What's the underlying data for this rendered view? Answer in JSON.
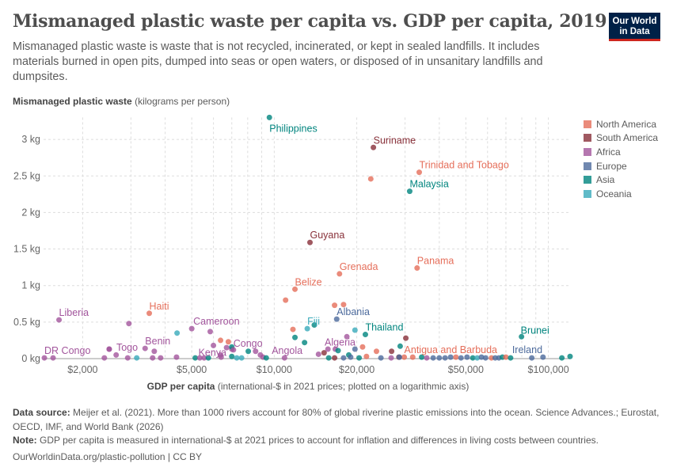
{
  "header": {
    "title": "Mismanaged plastic waste per capita vs. GDP per capita, 2019",
    "subtitle": "Mismanaged plastic waste is waste that is not recycled, incinerated, or kept in sealed landfills. It includes materials burned in open pits, dumped into seas or open waters, or disposed of in unsanitary landfills and dumpsites.",
    "logo_line1": "Our World",
    "logo_line2": "in Data"
  },
  "colors": {
    "North America": "#e56e5a",
    "South America": "#883039",
    "Africa": "#a2559c",
    "Europe": "#4c6a9c",
    "Asia": "#00847e",
    "Oceania": "#38aaba"
  },
  "chart_data": {
    "type": "scatter",
    "title": "Mismanaged plastic waste per capita vs. GDP per capita, 2019",
    "ylabel_bold": "Mismanaged plastic waste",
    "ylabel_unit": " (kilograms per person)",
    "xlabel_bold": "GDP per capita",
    "xlabel_unit": " (international-$ in 2021 prices; plotted on a logarithmic axis)",
    "x_scale": "log",
    "xlim": [
      1440,
      120000
    ],
    "ylim": [
      0,
      3.3
    ],
    "grid": true,
    "legend_placement": "right",
    "x_ticks": [
      {
        "v": 2000,
        "label": "$2,000"
      },
      {
        "v": 5000,
        "label": "$5,000"
      },
      {
        "v": 10000,
        "label": "$10,000"
      },
      {
        "v": 20000,
        "label": "$20,000"
      },
      {
        "v": 50000,
        "label": "$50,000"
      },
      {
        "v": 100000,
        "label": "$100,000"
      }
    ],
    "y_ticks": [
      {
        "v": 0,
        "label": "0 kg"
      },
      {
        "v": 0.5,
        "label": "0.5 kg"
      },
      {
        "v": 1,
        "label": "1 kg"
      },
      {
        "v": 1.5,
        "label": "1.5 kg"
      },
      {
        "v": 2,
        "label": "2 kg"
      },
      {
        "v": 2.5,
        "label": "2.5 kg"
      },
      {
        "v": 3,
        "label": "3 kg"
      }
    ],
    "legend": [
      "North America",
      "South America",
      "Africa",
      "Europe",
      "Asia",
      "Oceania"
    ],
    "points": [
      {
        "gdp": 9600,
        "kg": 3.3,
        "region": "Asia",
        "label": "Philippines"
      },
      {
        "gdp": 23000,
        "kg": 2.89,
        "region": "South America",
        "label": "Suriname"
      },
      {
        "gdp": 33800,
        "kg": 2.55,
        "region": "North America",
        "label": "Trinidad and Tobago"
      },
      {
        "gdp": 22500,
        "kg": 2.46,
        "region": "North America"
      },
      {
        "gdp": 31200,
        "kg": 2.29,
        "region": "Asia",
        "label": "Malaysia"
      },
      {
        "gdp": 13500,
        "kg": 1.59,
        "region": "South America",
        "label": "Guyana"
      },
      {
        "gdp": 17300,
        "kg": 1.16,
        "region": "North America",
        "label": "Grenada"
      },
      {
        "gdp": 33200,
        "kg": 1.24,
        "region": "North America",
        "label": "Panama"
      },
      {
        "gdp": 11900,
        "kg": 0.95,
        "region": "North America",
        "label": "Belize"
      },
      {
        "gdp": 11000,
        "kg": 0.8,
        "region": "North America"
      },
      {
        "gdp": 16600,
        "kg": 0.73,
        "region": "North America"
      },
      {
        "gdp": 17900,
        "kg": 0.74,
        "region": "North America"
      },
      {
        "gdp": 3500,
        "kg": 0.62,
        "region": "North America",
        "label": "Haiti"
      },
      {
        "gdp": 1640,
        "kg": 0.53,
        "region": "Africa",
        "label": "Liberia"
      },
      {
        "gdp": 2950,
        "kg": 0.48,
        "region": "Africa"
      },
      {
        "gdp": 5000,
        "kg": 0.41,
        "region": "Africa",
        "label": "Cameroon"
      },
      {
        "gdp": 13200,
        "kg": 0.41,
        "region": "Oceania",
        "label": "Fiji"
      },
      {
        "gdp": 16900,
        "kg": 0.54,
        "region": "Europe",
        "label": "Albania"
      },
      {
        "gdp": 21500,
        "kg": 0.33,
        "region": "Asia",
        "label": "Thailand"
      },
      {
        "gdp": 79800,
        "kg": 0.3,
        "region": "Asia",
        "label": "Brunei"
      },
      {
        "gdp": 18400,
        "kg": 0.3,
        "region": "Africa",
        "label": "Algeria"
      },
      {
        "gdp": 7000,
        "kg": 0.13,
        "region": "Africa",
        "label": "Congo"
      },
      {
        "gdp": 3380,
        "kg": 0.14,
        "region": "Africa",
        "label": "Benin"
      },
      {
        "gdp": 2500,
        "kg": 0.13,
        "region": "Africa",
        "label": "Togo"
      },
      {
        "gdp": 6370,
        "kg": 0.05,
        "region": "Africa",
        "label": "Kenya"
      },
      {
        "gdp": 1450,
        "kg": 0.01,
        "region": "Africa",
        "label": "DR Congo"
      },
      {
        "gdp": 9100,
        "kg": 0.02,
        "region": "Africa",
        "label": "Angola"
      },
      {
        "gdp": 29800,
        "kg": 0.02,
        "region": "North America",
        "label": "Antigua and Barbuda"
      },
      {
        "gdp": 95600,
        "kg": 0.02,
        "region": "Europe",
        "label": "Ireland"
      },
      {
        "gdp": 4420,
        "kg": 0.35,
        "region": "Oceania"
      },
      {
        "gdp": 5840,
        "kg": 0.37,
        "region": "Africa"
      },
      {
        "gdp": 11700,
        "kg": 0.4,
        "region": "North America"
      },
      {
        "gdp": 11900,
        "kg": 0.29,
        "region": "Asia"
      },
      {
        "gdp": 12900,
        "kg": 0.22,
        "region": "Asia"
      },
      {
        "gdp": 14000,
        "kg": 0.46,
        "region": "Asia"
      },
      {
        "gdp": 6370,
        "kg": 0.25,
        "region": "North America"
      },
      {
        "gdp": 6800,
        "kg": 0.23,
        "region": "North America"
      },
      {
        "gdp": 6000,
        "kg": 0.18,
        "region": "Africa"
      },
      {
        "gdp": 6700,
        "kg": 0.15,
        "region": "Africa"
      },
      {
        "gdp": 7000,
        "kg": 0.16,
        "region": "Asia"
      },
      {
        "gdp": 7100,
        "kg": 0.12,
        "region": "Africa"
      },
      {
        "gdp": 8040,
        "kg": 0.1,
        "region": "Asia"
      },
      {
        "gdp": 8550,
        "kg": 0.1,
        "region": "Africa"
      },
      {
        "gdp": 8900,
        "kg": 0.05,
        "region": "Africa"
      },
      {
        "gdp": 9350,
        "kg": 0.01,
        "region": "Asia"
      },
      {
        "gdp": 14500,
        "kg": 0.06,
        "region": "Africa"
      },
      {
        "gdp": 15200,
        "kg": 0.08,
        "region": "South America"
      },
      {
        "gdp": 15700,
        "kg": 0.13,
        "region": "Africa"
      },
      {
        "gdp": 16700,
        "kg": 0.13,
        "region": "Africa"
      },
      {
        "gdp": 17100,
        "kg": 0.11,
        "region": "Asia"
      },
      {
        "gdp": 19700,
        "kg": 0.39,
        "region": "Oceania"
      },
      {
        "gdp": 30200,
        "kg": 0.28,
        "region": "South America"
      },
      {
        "gdp": 28800,
        "kg": 0.17,
        "region": "Asia"
      },
      {
        "gdp": 21000,
        "kg": 0.16,
        "region": "North America"
      },
      {
        "gdp": 19700,
        "kg": 0.13,
        "region": "Europe"
      },
      {
        "gdp": 23600,
        "kg": 0.1,
        "region": "North America"
      },
      {
        "gdp": 26800,
        "kg": 0.1,
        "region": "South America"
      },
      {
        "gdp": 18700,
        "kg": 0.05,
        "region": "Asia"
      },
      {
        "gdp": 21700,
        "kg": 0.03,
        "region": "North America"
      },
      {
        "gdp": 28500,
        "kg": 0.02,
        "region": "South America"
      },
      {
        "gdp": 2500,
        "kg": 0.13,
        "region": "Africa"
      },
      {
        "gdp": 2650,
        "kg": 0.05,
        "region": "Africa"
      },
      {
        "gdp": 3650,
        "kg": 0.1,
        "region": "Africa"
      },
      {
        "gdp": 1560,
        "kg": 0.01,
        "region": "Africa"
      },
      {
        "gdp": 2400,
        "kg": 0.01,
        "region": "Africa"
      },
      {
        "gdp": 2920,
        "kg": 0.01,
        "region": "Africa"
      },
      {
        "gdp": 3150,
        "kg": 0.01,
        "region": "Oceania"
      },
      {
        "gdp": 3600,
        "kg": 0.01,
        "region": "Africa"
      },
      {
        "gdp": 3850,
        "kg": 0.01,
        "region": "Africa"
      },
      {
        "gdp": 4400,
        "kg": 0.02,
        "region": "Africa"
      },
      {
        "gdp": 5150,
        "kg": 0.01,
        "region": "Asia"
      },
      {
        "gdp": 5350,
        "kg": 0.01,
        "region": "Africa"
      },
      {
        "gdp": 5550,
        "kg": 0.01,
        "region": "Africa"
      },
      {
        "gdp": 5750,
        "kg": 0.01,
        "region": "Asia"
      },
      {
        "gdp": 6400,
        "kg": 0.02,
        "region": "Africa"
      },
      {
        "gdp": 7000,
        "kg": 0.03,
        "region": "Asia"
      },
      {
        "gdp": 7300,
        "kg": 0.01,
        "region": "Oceania"
      },
      {
        "gdp": 7600,
        "kg": 0.01,
        "region": "Oceania"
      },
      {
        "gdp": 10900,
        "kg": 0.01,
        "region": "Africa"
      },
      {
        "gdp": 15800,
        "kg": 0.01,
        "region": "Asia"
      },
      {
        "gdp": 16600,
        "kg": 0.01,
        "region": "South America"
      },
      {
        "gdp": 17900,
        "kg": 0.01,
        "region": "Europe"
      },
      {
        "gdp": 19000,
        "kg": 0.02,
        "region": "Europe"
      },
      {
        "gdp": 20400,
        "kg": 0.01,
        "region": "Asia"
      },
      {
        "gdp": 24500,
        "kg": 0.01,
        "region": "Europe"
      },
      {
        "gdp": 26700,
        "kg": 0.01,
        "region": "Africa"
      },
      {
        "gdp": 28600,
        "kg": 0.02,
        "region": "Europe"
      },
      {
        "gdp": 32000,
        "kg": 0.02,
        "region": "North America"
      },
      {
        "gdp": 34500,
        "kg": 0.02,
        "region": "Asia"
      },
      {
        "gdp": 36000,
        "kg": 0.01,
        "region": "Africa"
      },
      {
        "gdp": 38000,
        "kg": 0.01,
        "region": "Europe"
      },
      {
        "gdp": 40000,
        "kg": 0.01,
        "region": "Europe"
      },
      {
        "gdp": 42000,
        "kg": 0.01,
        "region": "Europe"
      },
      {
        "gdp": 44000,
        "kg": 0.02,
        "region": "Europe"
      },
      {
        "gdp": 46000,
        "kg": 0.02,
        "region": "North America"
      },
      {
        "gdp": 48000,
        "kg": 0.01,
        "region": "Europe"
      },
      {
        "gdp": 50500,
        "kg": 0.02,
        "region": "Europe"
      },
      {
        "gdp": 53000,
        "kg": 0.01,
        "region": "Asia"
      },
      {
        "gdp": 55000,
        "kg": 0.01,
        "region": "Oceania"
      },
      {
        "gdp": 57000,
        "kg": 0.02,
        "region": "Europe"
      },
      {
        "gdp": 59000,
        "kg": 0.01,
        "region": "Europe"
      },
      {
        "gdp": 62000,
        "kg": 0.01,
        "region": "North America"
      },
      {
        "gdp": 64000,
        "kg": 0.01,
        "region": "Europe"
      },
      {
        "gdp": 66000,
        "kg": 0.01,
        "region": "Europe"
      },
      {
        "gdp": 68000,
        "kg": 0.02,
        "region": "Asia"
      },
      {
        "gdp": 70000,
        "kg": 0.02,
        "region": "North America"
      },
      {
        "gdp": 72800,
        "kg": 0.01,
        "region": "Asia"
      },
      {
        "gdp": 87000,
        "kg": 0.01,
        "region": "Europe"
      },
      {
        "gdp": 112000,
        "kg": 0.01,
        "region": "Asia"
      },
      {
        "gdp": 120000,
        "kg": 0.03,
        "region": "Asia"
      }
    ]
  },
  "footer": {
    "source_label": "Data source:",
    "source_text": " Meijer et al. (2021). More than 1000 rivers account for 80% of global riverine plastic emissions into the ocean. Science Advances.; Eurostat, OECD, IMF, and World Bank (2026)",
    "note_label": "Note:",
    "note_text": " GDP per capita is measured in international-$ at 2021 prices to account for inflation and differences in living costs between countries.",
    "url": "OurWorldinData.org/plastic-pollution | CC BY"
  }
}
